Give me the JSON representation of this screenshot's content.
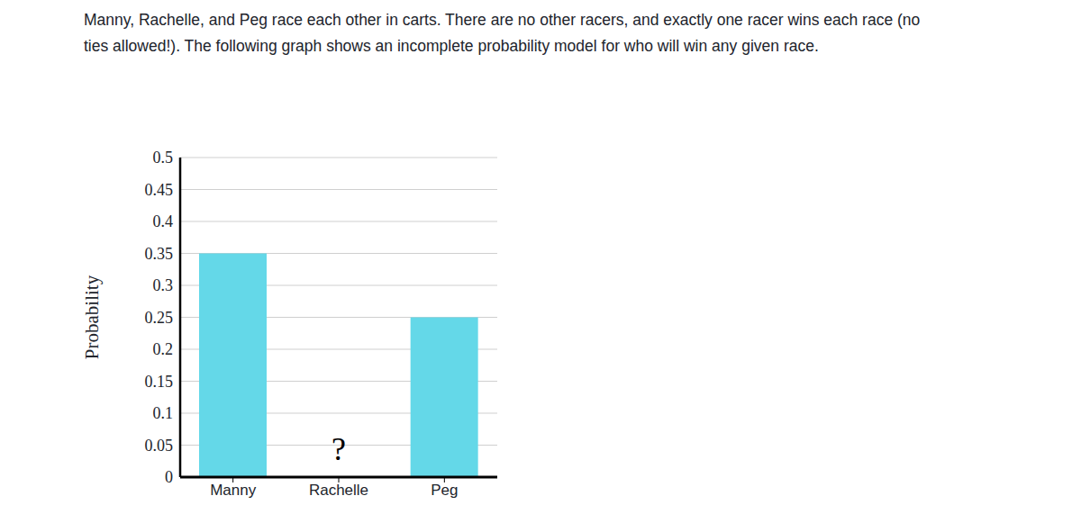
{
  "question": "Manny, Rachelle, and Peg race each other in carts. There are no other racers, and exactly one racer wins each race (no ties allowed!). The following graph shows an incomplete probability model for who will win any given race.",
  "chart_data": {
    "type": "bar",
    "categories": [
      "Manny",
      "Rachelle",
      "Peg"
    ],
    "values": [
      0.35,
      null,
      0.25
    ],
    "color": "#64d8e8",
    "ylabel": "Probability",
    "ylim": [
      0,
      0.5
    ],
    "yticks": [
      0,
      0.05,
      0.1,
      0.15,
      0.2,
      0.25,
      0.3,
      0.35,
      0.4,
      0.45,
      0.5
    ],
    "grid": true,
    "annotations": [
      {
        "category": "Rachelle",
        "text": "?"
      }
    ]
  }
}
